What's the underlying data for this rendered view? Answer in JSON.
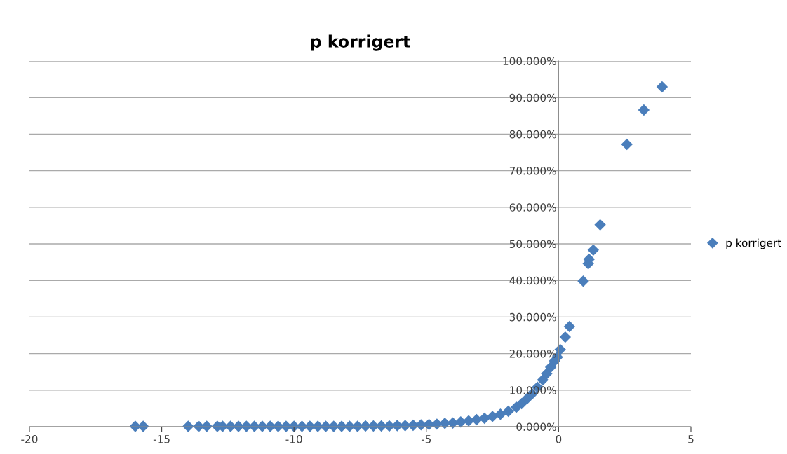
{
  "chart_data": {
    "type": "scatter",
    "title": "p korrigert",
    "series": [
      {
        "name": "p korrigert",
        "color": "#4a7ebb",
        "x": [
          -16.0,
          -15.7,
          -14.0,
          -13.6,
          -13.3,
          -12.9,
          -12.7,
          -12.4,
          -12.1,
          -11.8,
          -11.5,
          -11.2,
          -10.9,
          -10.6,
          -10.3,
          -10.0,
          -9.7,
          -9.4,
          -9.1,
          -8.8,
          -8.5,
          -8.2,
          -7.9,
          -7.6,
          -7.3,
          -7.0,
          -6.7,
          -6.4,
          -6.1,
          -5.8,
          -5.5,
          -5.2,
          -4.9,
          -4.6,
          -4.3,
          -4.0,
          -3.7,
          -3.4,
          -3.1,
          -2.8,
          -2.5,
          -2.2,
          -1.9,
          -1.6,
          -1.4,
          -1.2,
          -1.0,
          -0.8,
          -0.6,
          -0.45,
          -0.3,
          -0.15,
          -0.05,
          0.06,
          0.25,
          0.41,
          0.93,
          1.12,
          1.15,
          1.31,
          1.57,
          2.58,
          3.22,
          3.91
        ],
        "values": [
          0.1,
          0.1,
          0.1,
          0.1,
          0.1,
          0.1,
          0.1,
          0.1,
          0.1,
          0.1,
          0.1,
          0.1,
          0.1,
          0.1,
          0.1,
          0.1,
          0.1,
          0.1,
          0.1,
          0.1,
          0.1,
          0.1,
          0.1,
          0.1,
          0.2,
          0.2,
          0.2,
          0.2,
          0.3,
          0.3,
          0.4,
          0.5,
          0.6,
          0.7,
          0.9,
          1.0,
          1.3,
          1.6,
          1.9,
          2.3,
          2.8,
          3.4,
          4.2,
          5.3,
          6.3,
          7.6,
          9.0,
          10.8,
          12.8,
          14.5,
          16.3,
          18.0,
          19.0,
          21.1,
          24.5,
          27.4,
          39.8,
          44.6,
          45.8,
          48.3,
          55.2,
          77.2,
          86.6,
          92.9
        ]
      }
    ],
    "xlim": [
      -20,
      5
    ],
    "xticks": [
      -20,
      -15,
      -10,
      -5,
      0,
      5
    ],
    "ylim": [
      0,
      100
    ],
    "yticks": [
      {
        "value": 0,
        "label": "0.000%"
      },
      {
        "value": 10,
        "label": "10.000%"
      },
      {
        "value": 20,
        "label": "20.000%"
      },
      {
        "value": 30,
        "label": "30.000%"
      },
      {
        "value": 40,
        "label": "40.000%"
      },
      {
        "value": 50,
        "label": "50.000%"
      },
      {
        "value": 60,
        "label": "60.000%"
      },
      {
        "value": 70,
        "label": "70.000%"
      },
      {
        "value": 80,
        "label": "80.000%"
      },
      {
        "value": 90,
        "label": "90.000%"
      },
      {
        "value": 100,
        "label": "100.000%"
      }
    ],
    "grid": "y",
    "legend": "right",
    "marker": "diamond"
  }
}
